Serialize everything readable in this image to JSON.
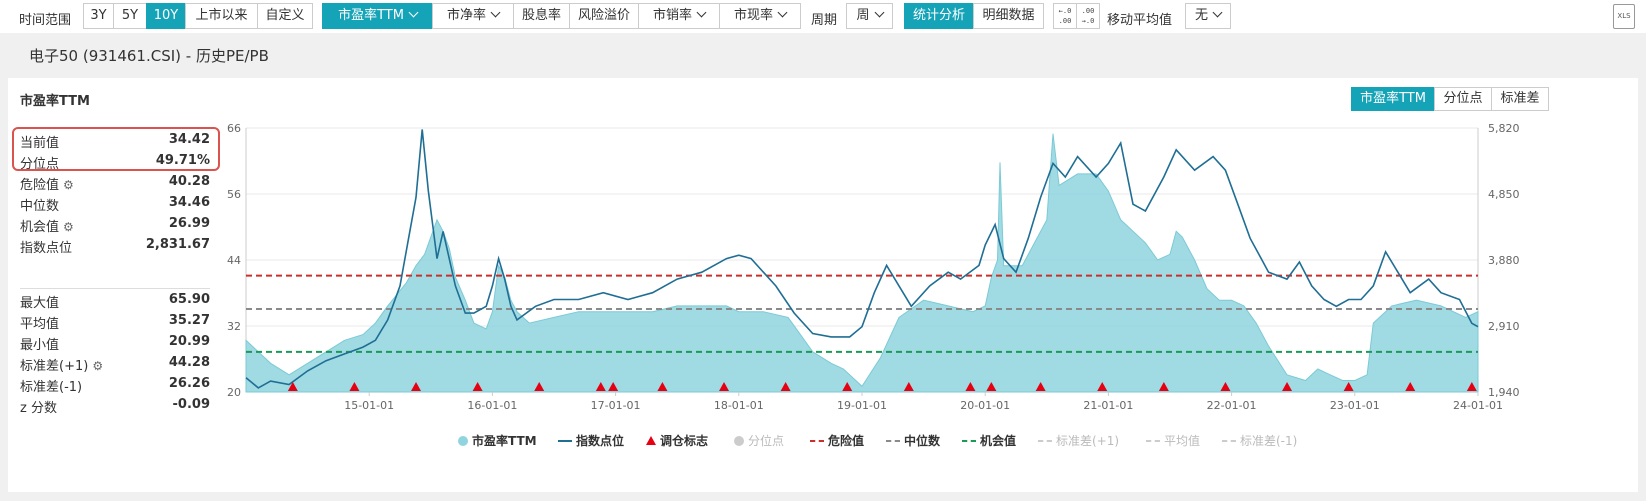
{
  "toolbar": {
    "time_label": "时间范围",
    "time_buttons": [
      "3Y",
      "5Y",
      "10Y",
      "上市以来",
      "自定义"
    ],
    "metric_buttons": [
      "市盈率TTM",
      "市净率",
      "股息率",
      "风险溢价",
      "市销率",
      "市现率"
    ],
    "period_label": "周期",
    "period_value": "周",
    "mode_buttons": [
      "统计分析",
      "明细数据"
    ],
    "ma_label": "移动平均值",
    "ma_value": "无",
    "xls_label": "XLS"
  },
  "subtitle": "电子50 (931461.CSI) - 历史PE/PB",
  "panel": {
    "title": "市盈率TTM",
    "view_buttons": [
      "市盈率TTM",
      "分位点",
      "标准差"
    ]
  },
  "stats_top": [
    {
      "label": "当前值",
      "value": "34.42"
    },
    {
      "label": "分位点",
      "value": "49.71%"
    },
    {
      "label": "危险值",
      "value": "40.28",
      "gear": true
    },
    {
      "label": "中位数",
      "value": "34.46"
    },
    {
      "label": "机会值",
      "value": "26.99",
      "gear": true
    },
    {
      "label": "指数点位",
      "value": "2,831.67"
    }
  ],
  "stats_bottom": [
    {
      "label": "最大值",
      "value": "65.90"
    },
    {
      "label": "平均值",
      "value": "35.27"
    },
    {
      "label": "最小值",
      "value": "20.99"
    },
    {
      "label": "标准差(+1)",
      "value": "44.28",
      "gear": true
    },
    {
      "label": "标准差(-1)",
      "value": "26.26"
    },
    {
      "label": "z 分数",
      "value": "-0.09"
    }
  ],
  "legend": [
    {
      "key": "pe",
      "label": "市盈率TTM",
      "color": "#8fd4de",
      "shape": "dot",
      "active": true
    },
    {
      "key": "idx",
      "label": "指数点位",
      "color": "#1f6e94",
      "shape": "line",
      "active": true
    },
    {
      "key": "adj",
      "label": "调仓标志",
      "color": "#e60012",
      "shape": "triangle",
      "active": true
    },
    {
      "key": "pct",
      "label": "分位点",
      "color": "#ccc",
      "shape": "dot",
      "active": false
    },
    {
      "key": "danger",
      "label": "危险值",
      "color": "#c9302c",
      "shape": "dash",
      "active": true
    },
    {
      "key": "median",
      "label": "中位数",
      "color": "#8a8a8a",
      "shape": "dash",
      "active": true
    },
    {
      "key": "opp",
      "label": "机会值",
      "color": "#1a9a56",
      "shape": "dash",
      "active": true
    },
    {
      "key": "sdp",
      "label": "标准差(+1)",
      "color": "#ccc",
      "shape": "dash",
      "active": false
    },
    {
      "key": "avg",
      "label": "平均值",
      "color": "#ccc",
      "shape": "dash",
      "active": false
    },
    {
      "key": "sdm",
      "label": "标准差(-1)",
      "color": "#ccc",
      "shape": "dash",
      "active": false
    }
  ],
  "chart_data": {
    "type": "area",
    "y_left": {
      "ticks": [
        "66",
        "56",
        "44",
        "32",
        "20"
      ],
      "range": [
        20,
        66
      ]
    },
    "y_right": {
      "ticks": [
        "5,820",
        "4,850",
        "3,880",
        "2,910",
        "1,940"
      ],
      "range": [
        1940,
        5820
      ]
    },
    "x_ticks": [
      "15-01-01",
      "16-01-01",
      "17-01-01",
      "18-01-01",
      "19-01-01",
      "20-01-01",
      "21-01-01",
      "22-01-01",
      "23-01-01",
      "24-01-01"
    ],
    "x_start": 2014.0,
    "x_end": 2024.0,
    "pe": [
      [
        2014.0,
        29
      ],
      [
        2014.1,
        27
      ],
      [
        2014.2,
        25
      ],
      [
        2014.35,
        23
      ],
      [
        2014.5,
        25
      ],
      [
        2014.65,
        27
      ],
      [
        2014.8,
        29
      ],
      [
        2014.95,
        30
      ],
      [
        2015.05,
        32
      ],
      [
        2015.15,
        35
      ],
      [
        2015.3,
        39
      ],
      [
        2015.38,
        42
      ],
      [
        2015.45,
        44
      ],
      [
        2015.5,
        47
      ],
      [
        2015.55,
        50
      ],
      [
        2015.6,
        48
      ],
      [
        2015.65,
        45
      ],
      [
        2015.7,
        40
      ],
      [
        2015.78,
        36
      ],
      [
        2015.85,
        32
      ],
      [
        2015.95,
        31
      ],
      [
        2016.0,
        34
      ],
      [
        2016.05,
        42
      ],
      [
        2016.1,
        40
      ],
      [
        2016.15,
        36
      ],
      [
        2016.2,
        34
      ],
      [
        2016.3,
        32
      ],
      [
        2016.5,
        33
      ],
      [
        2016.7,
        34
      ],
      [
        2016.9,
        34
      ],
      [
        2017.1,
        34
      ],
      [
        2017.3,
        34
      ],
      [
        2017.5,
        35
      ],
      [
        2017.7,
        35
      ],
      [
        2017.9,
        35
      ],
      [
        2018.0,
        34
      ],
      [
        2018.2,
        34
      ],
      [
        2018.4,
        33
      ],
      [
        2018.5,
        30
      ],
      [
        2018.6,
        27
      ],
      [
        2018.75,
        25
      ],
      [
        2018.85,
        24
      ],
      [
        2019.0,
        21
      ],
      [
        2019.15,
        26
      ],
      [
        2019.3,
        33
      ],
      [
        2019.5,
        36
      ],
      [
        2019.7,
        35
      ],
      [
        2019.9,
        34
      ],
      [
        2020.0,
        35
      ],
      [
        2020.05,
        40
      ],
      [
        2020.1,
        43
      ],
      [
        2020.12,
        60
      ],
      [
        2020.15,
        42
      ],
      [
        2020.3,
        42
      ],
      [
        2020.5,
        50
      ],
      [
        2020.55,
        65
      ],
      [
        2020.6,
        56
      ],
      [
        2020.75,
        58
      ],
      [
        2020.9,
        58
      ],
      [
        2021.0,
        55
      ],
      [
        2021.1,
        50
      ],
      [
        2021.3,
        46
      ],
      [
        2021.4,
        43
      ],
      [
        2021.5,
        44
      ],
      [
        2021.55,
        48
      ],
      [
        2021.6,
        47
      ],
      [
        2021.7,
        43
      ],
      [
        2021.8,
        38
      ],
      [
        2021.9,
        36
      ],
      [
        2022.0,
        36
      ],
      [
        2022.1,
        35
      ],
      [
        2022.2,
        32
      ],
      [
        2022.3,
        28
      ],
      [
        2022.45,
        23
      ],
      [
        2022.6,
        22
      ],
      [
        2022.7,
        24
      ],
      [
        2022.8,
        23
      ],
      [
        2022.9,
        22
      ],
      [
        2023.0,
        22
      ],
      [
        2023.1,
        23
      ],
      [
        2023.15,
        32
      ],
      [
        2023.3,
        35
      ],
      [
        2023.5,
        36
      ],
      [
        2023.7,
        35
      ],
      [
        2023.9,
        33
      ],
      [
        2024.0,
        34
      ]
    ],
    "index_points": [
      [
        2014.0,
        2150
      ],
      [
        2014.1,
        2000
      ],
      [
        2014.2,
        2100
      ],
      [
        2014.35,
        2050
      ],
      [
        2014.5,
        2250
      ],
      [
        2014.65,
        2400
      ],
      [
        2014.8,
        2500
      ],
      [
        2014.95,
        2600
      ],
      [
        2015.05,
        2700
      ],
      [
        2015.15,
        3000
      ],
      [
        2015.25,
        3500
      ],
      [
        2015.32,
        4200
      ],
      [
        2015.38,
        4800
      ],
      [
        2015.43,
        5800
      ],
      [
        2015.48,
        4900
      ],
      [
        2015.55,
        3900
      ],
      [
        2015.6,
        4300
      ],
      [
        2015.7,
        3500
      ],
      [
        2015.78,
        3100
      ],
      [
        2015.85,
        3100
      ],
      [
        2015.95,
        3200
      ],
      [
        2016.0,
        3500
      ],
      [
        2016.05,
        3900
      ],
      [
        2016.1,
        3600
      ],
      [
        2016.15,
        3200
      ],
      [
        2016.2,
        3000
      ],
      [
        2016.35,
        3200
      ],
      [
        2016.5,
        3300
      ],
      [
        2016.7,
        3300
      ],
      [
        2016.9,
        3400
      ],
      [
        2017.1,
        3300
      ],
      [
        2017.3,
        3400
      ],
      [
        2017.5,
        3600
      ],
      [
        2017.7,
        3700
      ],
      [
        2017.9,
        3900
      ],
      [
        2018.0,
        3950
      ],
      [
        2018.1,
        3900
      ],
      [
        2018.2,
        3700
      ],
      [
        2018.3,
        3500
      ],
      [
        2018.45,
        3100
      ],
      [
        2018.6,
        2800
      ],
      [
        2018.75,
        2750
      ],
      [
        2018.9,
        2750
      ],
      [
        2019.0,
        2900
      ],
      [
        2019.1,
        3400
      ],
      [
        2019.2,
        3800
      ],
      [
        2019.3,
        3500
      ],
      [
        2019.4,
        3200
      ],
      [
        2019.55,
        3500
      ],
      [
        2019.7,
        3700
      ],
      [
        2019.8,
        3600
      ],
      [
        2019.95,
        3800
      ],
      [
        2020.0,
        4100
      ],
      [
        2020.08,
        4400
      ],
      [
        2020.15,
        3900
      ],
      [
        2020.25,
        3700
      ],
      [
        2020.35,
        4200
      ],
      [
        2020.45,
        4800
      ],
      [
        2020.55,
        5300
      ],
      [
        2020.65,
        5100
      ],
      [
        2020.75,
        5400
      ],
      [
        2020.9,
        5100
      ],
      [
        2021.0,
        5300
      ],
      [
        2021.1,
        5600
      ],
      [
        2021.2,
        4700
      ],
      [
        2021.3,
        4600
      ],
      [
        2021.45,
        5100
      ],
      [
        2021.55,
        5500
      ],
      [
        2021.7,
        5200
      ],
      [
        2021.85,
        5400
      ],
      [
        2021.95,
        5200
      ],
      [
        2022.05,
        4700
      ],
      [
        2022.15,
        4200
      ],
      [
        2022.3,
        3700
      ],
      [
        2022.45,
        3600
      ],
      [
        2022.55,
        3850
      ],
      [
        2022.65,
        3500
      ],
      [
        2022.75,
        3300
      ],
      [
        2022.85,
        3200
      ],
      [
        2022.95,
        3300
      ],
      [
        2023.05,
        3300
      ],
      [
        2023.15,
        3500
      ],
      [
        2023.25,
        4000
      ],
      [
        2023.35,
        3700
      ],
      [
        2023.45,
        3400
      ],
      [
        2023.6,
        3600
      ],
      [
        2023.7,
        3400
      ],
      [
        2023.85,
        3300
      ],
      [
        2023.95,
        2950
      ],
      [
        2024.0,
        2900
      ]
    ],
    "rebalance_x": [
      2014.38,
      2014.88,
      2015.38,
      2015.88,
      2016.38,
      2016.88,
      2016.98,
      2017.38,
      2017.88,
      2018.38,
      2018.88,
      2019.38,
      2019.88,
      2020.05,
      2020.45,
      2020.95,
      2021.45,
      2021.95,
      2022.45,
      2022.95,
      2023.45,
      2023.95
    ],
    "danger": 40.28,
    "median": 34.46,
    "opportunity": 26.99
  }
}
